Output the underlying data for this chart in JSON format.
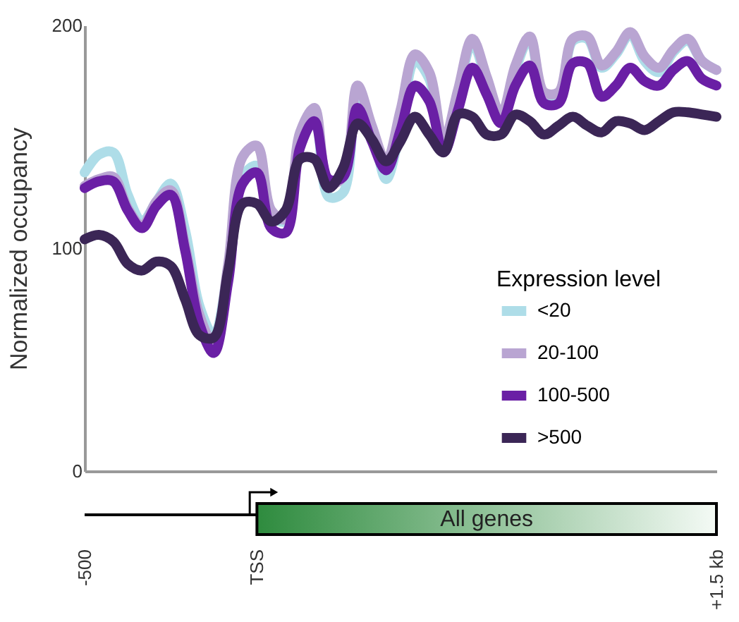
{
  "chart_data": {
    "type": "line",
    "ylabel": "Normalized occupancy",
    "legend_title": "Expression level",
    "legend": "right",
    "grid": false,
    "marker": "none",
    "line_style": "solid",
    "ylim": [
      0,
      200
    ],
    "yticks": [
      0,
      100,
      200
    ],
    "annotations": [
      "All genes"
    ],
    "categories": [
      "-500",
      null,
      null,
      null,
      null,
      null,
      null,
      null,
      null,
      null,
      null,
      null,
      "TSS",
      null,
      null,
      null,
      null,
      null,
      null,
      null,
      null,
      null,
      null,
      null,
      null,
      null,
      null,
      null,
      null,
      null,
      null,
      null,
      null,
      null,
      null,
      null,
      null,
      null,
      null,
      null,
      null,
      null,
      null,
      null,
      "+1.5 kb"
    ],
    "series": [
      {
        "name": "<20",
        "color": "#aedde8",
        "values": [
          134,
          142,
          143,
          124,
          112,
          121,
          129,
          108,
          74,
          61,
          91,
          132,
          137,
          115,
          112,
          149,
          159,
          123,
          125,
          168,
          154,
          131,
          154,
          184,
          176,
          146,
          169,
          192,
          175,
          158,
          180,
          194,
          169,
          169,
          193,
          194,
          181,
          187,
          196,
          184,
          179,
          188,
          193,
          184,
          180
        ]
      },
      {
        "name": "20-100",
        "color": "#b9a5d2",
        "values": [
          128,
          131,
          132,
          118,
          110,
          121,
          126,
          101,
          70,
          57,
          93,
          141,
          146,
          117,
          113,
          152,
          163,
          129,
          132,
          173,
          155,
          139,
          162,
          187,
          179,
          148,
          171,
          194,
          177,
          160,
          182,
          195,
          170,
          170,
          194,
          195,
          182,
          188,
          197,
          186,
          181,
          189,
          194,
          184,
          180
        ]
      },
      {
        "name": "100-500",
        "color": "#6a1fa5",
        "values": [
          127,
          130,
          130,
          117,
          109,
          119,
          124,
          99,
          66,
          53,
          85,
          129,
          134,
          109,
          107,
          145,
          157,
          131,
          132,
          163,
          148,
          135,
          153,
          173,
          166,
          143,
          162,
          181,
          169,
          156,
          173,
          182,
          165,
          165,
          183,
          183,
          168,
          173,
          181,
          175,
          173,
          180,
          184,
          176,
          173
        ]
      },
      {
        "name": ">500",
        "color": "#3b2656",
        "values": [
          104,
          106,
          103,
          93,
          90,
          94,
          92,
          77,
          61,
          60,
          90,
          120,
          120,
          112,
          117,
          140,
          140,
          127,
          136,
          156,
          149,
          139,
          148,
          159,
          151,
          143,
          160,
          159,
          151,
          151,
          160,
          157,
          151,
          155,
          159,
          155,
          152,
          157,
          156,
          153,
          157,
          161,
          161,
          160,
          159
        ]
      }
    ]
  }
}
